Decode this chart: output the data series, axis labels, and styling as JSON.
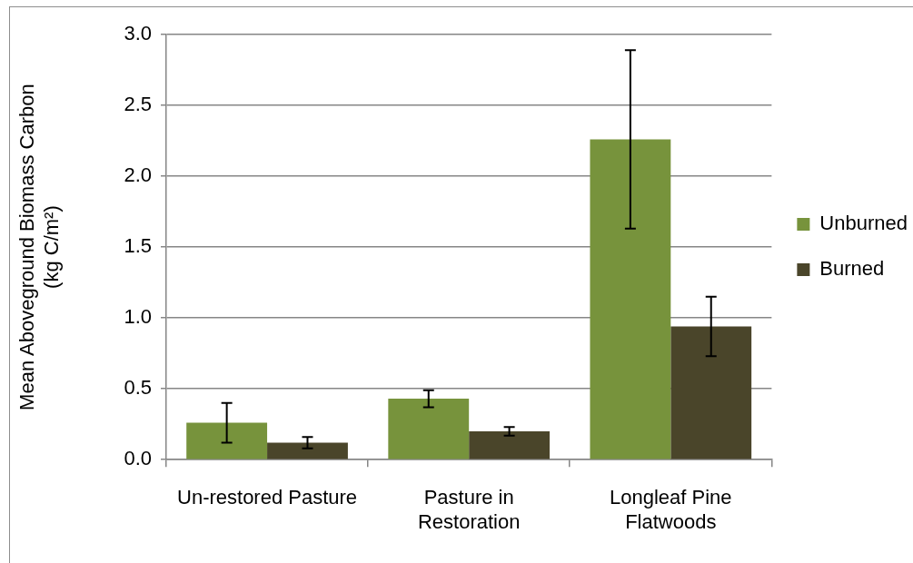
{
  "chart_data": {
    "type": "bar",
    "categories": [
      "Un-restored Pasture",
      "Pasture in Restoration",
      "Longleaf Pine Flatwoods"
    ],
    "series": [
      {
        "name": "Unburned",
        "color": "#77933c",
        "values": [
          0.26,
          0.43,
          2.26
        ],
        "errors": [
          0.14,
          0.06,
          0.63
        ]
      },
      {
        "name": "Burned",
        "color": "#4a452a",
        "values": [
          0.12,
          0.2,
          0.94
        ],
        "errors": [
          0.04,
          0.03,
          0.21
        ]
      }
    ],
    "ylabel": "Mean Aboveground Biomass Carbon (kg C/m²)",
    "ylim": [
      0,
      3
    ],
    "yticks": [
      {
        "value": 0,
        "label": "0.0"
      },
      0.5,
      {
        "value": 1,
        "label": "1.0"
      },
      1.5,
      {
        "value": 2,
        "label": "2.0"
      },
      2.5,
      {
        "value": 3,
        "label": "3.0"
      }
    ],
    "grid": "y",
    "legend": "right"
  }
}
